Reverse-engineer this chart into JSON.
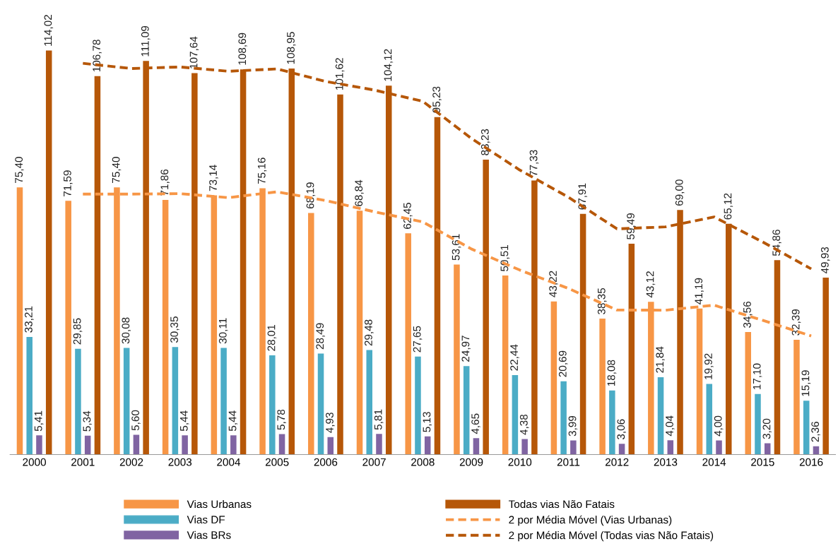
{
  "chart_data": {
    "type": "bar",
    "categories": [
      "2000",
      "2001",
      "2002",
      "2003",
      "2004",
      "2005",
      "2006",
      "2007",
      "2008",
      "2009",
      "2010",
      "2011",
      "2012",
      "2013",
      "2014",
      "2015",
      "2016"
    ],
    "series": [
      {
        "name": "Vias Urbanas",
        "color": "#f79646",
        "values": [
          75.4,
          71.59,
          75.4,
          71.86,
          73.14,
          75.16,
          68.19,
          68.84,
          62.45,
          53.61,
          50.51,
          43.22,
          38.35,
          43.12,
          41.19,
          34.56,
          32.39
        ],
        "value_labels": [
          "75,40",
          "71,59",
          "75,40",
          "71,86",
          "73,14",
          "75,16",
          "68,19",
          "68,84",
          "62,45",
          "53,61",
          "50,51",
          "43,22",
          "38,35",
          "43,12",
          "41,19",
          "34,56",
          "32,39"
        ]
      },
      {
        "name": "Vias DF",
        "color": "#4bacc6",
        "values": [
          33.21,
          29.85,
          30.08,
          30.35,
          30.11,
          28.01,
          28.49,
          29.48,
          27.65,
          24.97,
          22.44,
          20.69,
          18.08,
          21.84,
          19.92,
          17.1,
          15.19
        ],
        "value_labels": [
          "33,21",
          "29,85",
          "30,08",
          "30,35",
          "30,11",
          "28,01",
          "28,49",
          "29,48",
          "27,65",
          "24,97",
          "22,44",
          "20,69",
          "18,08",
          "21,84",
          "19,92",
          "17,10",
          "15,19"
        ]
      },
      {
        "name": "Vias BRs",
        "color": "#8064a2",
        "values": [
          5.41,
          5.34,
          5.6,
          5.44,
          5.44,
          5.78,
          4.93,
          5.81,
          5.13,
          4.65,
          4.38,
          3.99,
          3.06,
          4.04,
          4.0,
          3.2,
          2.36
        ],
        "value_labels": [
          "5,41",
          "5,34",
          "5,60",
          "5,44",
          "5,44",
          "5,78",
          "4,93",
          "5,81",
          "5,13",
          "4,65",
          "4,38",
          "3,99",
          "3,06",
          "4,04",
          "4,00",
          "3,20",
          "2,36"
        ]
      },
      {
        "name": "Todas vias Não Fatais",
        "color": "#b65708",
        "values": [
          114.02,
          106.78,
          111.09,
          107.64,
          108.69,
          108.95,
          101.62,
          104.12,
          95.23,
          83.23,
          77.33,
          67.91,
          59.49,
          69.0,
          65.12,
          54.86,
          49.93
        ],
        "value_labels": [
          "114,02",
          "106,78",
          "111,09",
          "107,64",
          "108,69",
          "108,95",
          "101,62",
          "104,12",
          "95,23",
          "83,23",
          "77,33",
          "67,91",
          "59,49",
          "69,00",
          "65,12",
          "54,86",
          "49,93"
        ]
      },
      {
        "name": "2 por Média Móvel (Vias Urbanas)",
        "type": "line",
        "line_style": "dashed",
        "color": "#f79646",
        "values": [
          null,
          73.5,
          73.5,
          73.63,
          72.5,
          74.15,
          71.68,
          68.52,
          65.65,
          58.03,
          52.06,
          46.87,
          40.79,
          40.74,
          42.16,
          37.88,
          33.48
        ]
      },
      {
        "name": "2 por Média Móvel (Todas vias Não Fatais)",
        "type": "line",
        "line_style": "dashed",
        "color": "#b65708",
        "values": [
          null,
          110.4,
          108.94,
          109.37,
          108.17,
          108.82,
          105.29,
          102.87,
          99.68,
          89.23,
          80.28,
          72.62,
          63.7,
          64.25,
          67.06,
          59.99,
          52.4
        ]
      }
    ],
    "tick_labels": "x",
    "legend": "bottom",
    "grid": false
  }
}
